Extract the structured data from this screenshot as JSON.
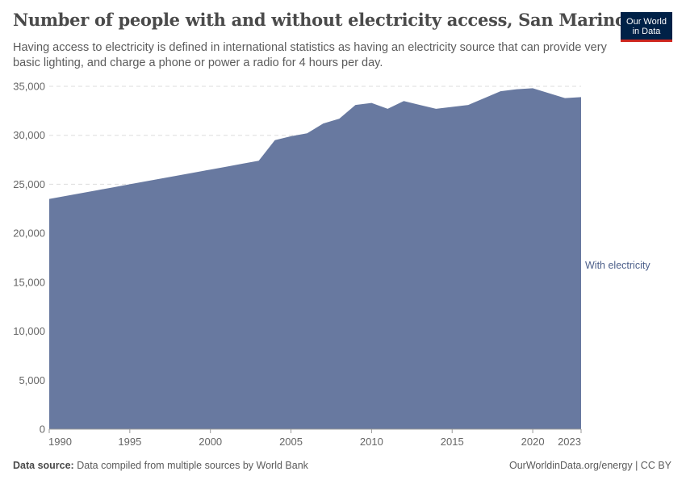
{
  "header": {
    "title": "Number of people with and without electricity access, San Marino",
    "subtitle": "Having access to electricity is defined in international statistics as having an electricity source that can provide very basic lighting, and charge a phone or power a radio for 4 hours per day."
  },
  "logo": {
    "line1": "Our World",
    "line2": "in Data"
  },
  "footer": {
    "source_label": "Data source:",
    "source_text": "Data compiled from multiple sources by World Bank",
    "site": "OurWorldinData.org/energy | CC BY"
  },
  "colors": {
    "area": "#6879a0",
    "series_label": "#4c5f8a",
    "grid": "#dddddd",
    "axis_text": "#666666"
  },
  "chart_data": {
    "type": "area",
    "x_ticks": [
      1990,
      1995,
      2000,
      2005,
      2010,
      2015,
      2020,
      2023
    ],
    "y_ticks": [
      0,
      5000,
      10000,
      15000,
      20000,
      25000,
      30000,
      35000
    ],
    "y_tick_labels": [
      "0",
      "5,000",
      "10,000",
      "15,000",
      "20,000",
      "25,000",
      "30,000",
      "35,000"
    ],
    "xlim": [
      1990,
      2023
    ],
    "ylim": [
      0,
      35000
    ],
    "grid": "horizontal dashed",
    "series": [
      {
        "name": "With electricity",
        "x": [
          1990,
          1991,
          1992,
          1993,
          1994,
          1995,
          1996,
          1997,
          1998,
          1999,
          2000,
          2001,
          2002,
          2003,
          2004,
          2005,
          2006,
          2007,
          2008,
          2009,
          2010,
          2011,
          2012,
          2013,
          2014,
          2015,
          2016,
          2017,
          2018,
          2019,
          2020,
          2021,
          2022,
          2023
        ],
        "values": [
          23500,
          23800,
          24100,
          24400,
          24700,
          25000,
          25300,
          25600,
          25900,
          26200,
          26500,
          26800,
          27100,
          27400,
          29500,
          29900,
          30200,
          31200,
          31700,
          33100,
          33300,
          32700,
          33500,
          33100,
          32700,
          32900,
          33100,
          33800,
          34500,
          34700,
          34800,
          34300,
          33800,
          33900
        ]
      }
    ]
  }
}
